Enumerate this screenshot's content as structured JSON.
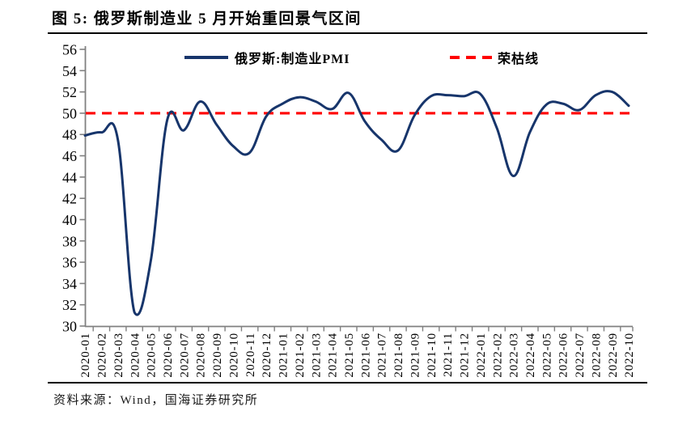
{
  "figure": {
    "title": "图 5:  俄罗斯制造业 5 月开始重回景气区间",
    "source": "资料来源：Wind，国海证券研究所"
  },
  "legend": {
    "pmi_label": "俄罗斯:制造业PMI",
    "threshold_label": "荣枯线"
  },
  "colors": {
    "pmi_line": "#17356B",
    "threshold_line": "#FF0000",
    "axis_line": "#808080",
    "label_text": "#000000"
  },
  "chart_data": {
    "type": "line",
    "title": "图 5: 俄罗斯制造业 5 月开始重回景气区间",
    "x": [
      "2020-01",
      "2020-02",
      "2020-03",
      "2020-04",
      "2020-05",
      "2020-06",
      "2020-07",
      "2020-08",
      "2020-09",
      "2020-10",
      "2020-11",
      "2020-12",
      "2021-01",
      "2021-02",
      "2021-03",
      "2021-04",
      "2021-05",
      "2021-06",
      "2021-07",
      "2021-08",
      "2021-09",
      "2021-10",
      "2021-11",
      "2021-12",
      "2022-01",
      "2022-02",
      "2022-03",
      "2022-04",
      "2022-05",
      "2022-06",
      "2022-07",
      "2022-08",
      "2022-09",
      "2022-10"
    ],
    "series": [
      {
        "name": "俄罗斯:制造业PMI",
        "color": "#17356B",
        "style": "solid",
        "values": [
          47.9,
          48.2,
          47.5,
          31.3,
          36.2,
          49.4,
          48.4,
          51.1,
          48.9,
          46.9,
          46.3,
          49.7,
          50.9,
          51.5,
          51.1,
          50.4,
          51.9,
          49.2,
          47.5,
          46.5,
          49.8,
          51.6,
          51.7,
          51.6,
          51.8,
          48.6,
          44.1,
          48.2,
          50.8,
          50.9,
          50.3,
          51.7,
          52.0,
          50.7
        ]
      },
      {
        "name": "荣枯线",
        "color": "#FF0000",
        "style": "dashed",
        "constant_value": 50
      }
    ],
    "ylim": [
      30,
      56
    ],
    "ytick_step": 2,
    "yticks": [
      30,
      32,
      34,
      36,
      38,
      40,
      42,
      44,
      46,
      48,
      50,
      52,
      54,
      56
    ],
    "grid": false,
    "legend_position": "top",
    "x_tick_rotation": 90
  }
}
